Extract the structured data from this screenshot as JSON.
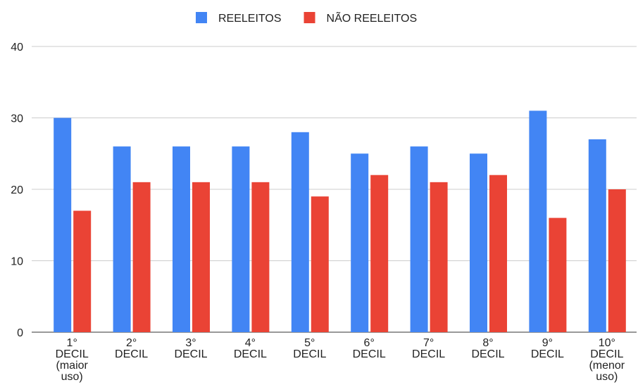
{
  "chart_data": {
    "type": "bar",
    "categories": [
      "1° DECIL (maior uso)",
      "2° DECIL",
      "3° DECIL",
      "4° DECIL",
      "5° DECIL",
      "6° DECIL",
      "7° DECIL",
      "8° DECIL",
      "9° DECIL",
      "10° DECIL (menor uso)"
    ],
    "series": [
      {
        "name": "REELEITOS",
        "color": "#4285f4",
        "values": [
          30,
          26,
          26,
          26,
          28,
          25,
          26,
          25,
          31,
          27
        ]
      },
      {
        "name": "NÃO REELEITOS",
        "color": "#ea4335",
        "values": [
          17,
          21,
          21,
          21,
          19,
          22,
          21,
          22,
          16,
          20
        ]
      }
    ],
    "ylim": [
      0,
      40
    ],
    "yticks": [
      0,
      10,
      20,
      30,
      40
    ],
    "grid": true,
    "legend": "top"
  }
}
